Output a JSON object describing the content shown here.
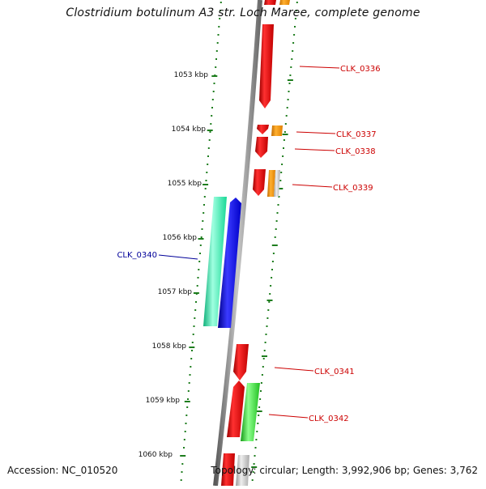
{
  "title": "Clostridium botulinum A3 str. Loch Maree, complete genome",
  "footer": {
    "accession": "Accession: NC_010520",
    "summary": "Topology: circular; Length: 3,992,906 bp; Genes: 3,762"
  },
  "ruler_labels": [
    "1053 kbp",
    "1054 kbp",
    "1055 kbp",
    "1056 kbp",
    "1057 kbp",
    "1058 kbp",
    "1059 kbp",
    "1060 kbp"
  ],
  "gene_labels": [
    "CLK_0336",
    "CLK_0337",
    "CLK_0338",
    "CLK_0339",
    "CLK_0340",
    "CLK_0341",
    "CLK_0342"
  ],
  "colors": {
    "backbone": "#8a8a8a",
    "ruler_ticks": "#1e7d1e",
    "gene_red": "#e01010",
    "gene_orange": "#f08a00",
    "gene_gray": "#bdbdbd",
    "gene_teal": "#19e3a0",
    "gene_blue": "#1010e6",
    "gene_green": "#2bd12b",
    "label_red": "#cc0000",
    "label_blue": "#000099"
  }
}
